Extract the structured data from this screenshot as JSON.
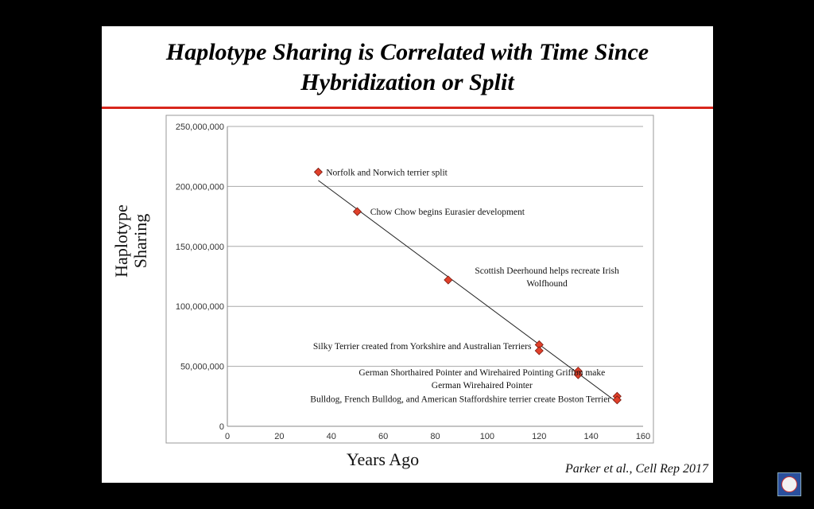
{
  "slide": {
    "title_line1": "Haplotype Sharing is Correlated with Time Since",
    "title_line2": "Hybridization or Split",
    "citation": "Parker et al., Cell Rep 2017",
    "accent_color": "#d8261c"
  },
  "chart_data": {
    "type": "scatter",
    "title": "",
    "xlabel": "Years Ago",
    "ylabel_lines": [
      "Haplotype",
      "Sharing"
    ],
    "xlim": [
      0,
      160
    ],
    "ylim": [
      0,
      250000000
    ],
    "x_ticks": [
      0,
      20,
      40,
      60,
      80,
      100,
      120,
      140,
      160
    ],
    "x_tick_labels": [
      "0",
      "20",
      "40",
      "60",
      "80",
      "100",
      "120",
      "140",
      "160"
    ],
    "y_ticks": [
      0,
      50000000,
      100000000,
      150000000,
      200000000,
      250000000
    ],
    "y_tick_labels": [
      "0",
      "50,000,000",
      "100,000,000",
      "150,000,000",
      "200,000,000",
      "250,000,000"
    ],
    "grid": "horizontal",
    "marker_color": "#e0402a",
    "points": [
      {
        "x": 35,
        "y": 212000000
      },
      {
        "x": 50,
        "y": 179000000
      },
      {
        "x": 85,
        "y": 122000000
      },
      {
        "x": 120,
        "y": 68000000
      },
      {
        "x": 120,
        "y": 63000000
      },
      {
        "x": 135,
        "y": 46000000
      },
      {
        "x": 135,
        "y": 43000000
      },
      {
        "x": 150,
        "y": 25000000
      },
      {
        "x": 150,
        "y": 22000000
      }
    ],
    "trendline": {
      "x": [
        35,
        150
      ],
      "y": [
        205000000,
        20000000
      ]
    },
    "annotations": [
      {
        "lines": [
          "Norfolk and Norwich terrier split"
        ],
        "x": 38,
        "y": 212000000,
        "anchor": "start"
      },
      {
        "lines": [
          "Chow Chow begins Eurasier development"
        ],
        "x": 55,
        "y": 179000000,
        "anchor": "start"
      },
      {
        "lines": [
          "Scottish Deerhound helps recreate Irish",
          "Wolfhound"
        ],
        "x": 123,
        "y": 130000000,
        "anchor": "middle"
      },
      {
        "lines": [
          "Silky Terrier created from Yorkshire and Australian Terriers"
        ],
        "x": 117,
        "y": 67000000,
        "anchor": "end"
      },
      {
        "lines": [
          "German Shorthaired Pointer and Wirehaired Pointing Griffon make",
          "German Wirehaired Pointer"
        ],
        "x": 98,
        "y": 45000000,
        "anchor": "middle"
      },
      {
        "lines": [
          "Bulldog, French Bulldog, and American Staffordshire terrier create Boston Terrier"
        ],
        "x": 147.5,
        "y": 23000000,
        "anchor": "end"
      }
    ]
  }
}
